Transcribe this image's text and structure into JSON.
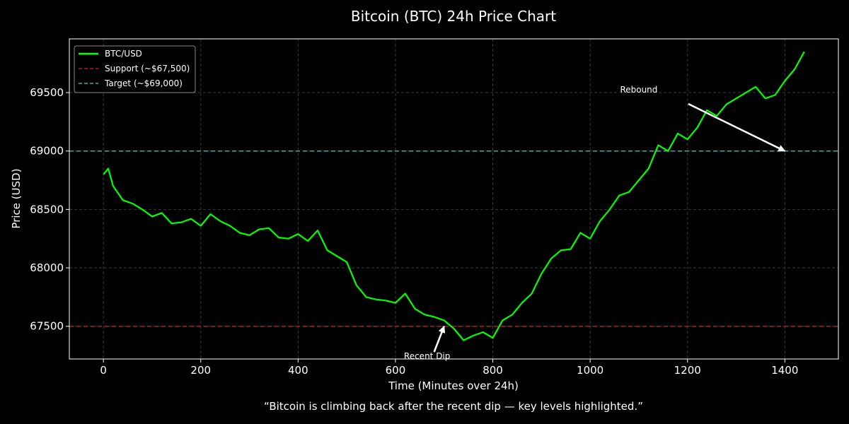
{
  "chart_data": {
    "type": "line",
    "title": "Bitcoin (BTC) 24h Price Chart",
    "xlabel": "Time (Minutes over 24h)",
    "ylabel": "Price (USD)",
    "caption": "“Bitcoin is climbing back after the recent dip — key levels highlighted.”",
    "xlim": [
      -70,
      1510
    ],
    "ylim": [
      67220,
      69960
    ],
    "x_ticks": [
      0,
      200,
      400,
      600,
      800,
      1000,
      1200,
      1400
    ],
    "y_ticks": [
      67500,
      68000,
      68500,
      69000,
      69500
    ],
    "grid": true,
    "legend_position": "top-left",
    "series": [
      {
        "name": "BTC/USD",
        "color": "#00ff00",
        "x": [
          0,
          10,
          20,
          40,
          60,
          80,
          100,
          120,
          140,
          160,
          180,
          200,
          220,
          240,
          260,
          280,
          300,
          320,
          340,
          360,
          380,
          400,
          420,
          440,
          460,
          480,
          500,
          520,
          540,
          560,
          580,
          600,
          620,
          640,
          660,
          680,
          700,
          720,
          740,
          760,
          780,
          800,
          820,
          840,
          860,
          880,
          900,
          920,
          940,
          960,
          980,
          1000,
          1020,
          1040,
          1060,
          1080,
          1100,
          1120,
          1140,
          1160,
          1180,
          1200,
          1220,
          1240,
          1260,
          1280,
          1300,
          1320,
          1340,
          1360,
          1380,
          1400,
          1420,
          1440
        ],
        "values": [
          68800,
          68850,
          68700,
          68580,
          68550,
          68500,
          68440,
          68470,
          68380,
          68390,
          68420,
          68360,
          68460,
          68400,
          68360,
          68300,
          68280,
          68330,
          68340,
          68260,
          68250,
          68290,
          68230,
          68320,
          68150,
          68100,
          68050,
          67850,
          67750,
          67730,
          67720,
          67700,
          67780,
          67650,
          67600,
          67580,
          67550,
          67480,
          67380,
          67420,
          67450,
          67400,
          67550,
          67600,
          67700,
          67780,
          67950,
          68080,
          68150,
          68160,
          68300,
          68250,
          68400,
          68500,
          68620,
          68650,
          68750,
          68850,
          69050,
          69000,
          69150,
          69100,
          69200,
          69350,
          69300,
          69400,
          69450,
          69500,
          69550,
          69450,
          69480,
          69600,
          69700,
          69850
        ]
      }
    ],
    "reference_lines": [
      {
        "name": "Support (~$67,500)",
        "value": 67500,
        "color": "#cc1111"
      },
      {
        "name": "Target (~$69,000)",
        "value": 69000,
        "color": "#2ab5b5"
      }
    ],
    "annotations": [
      {
        "text": "Recent Dip",
        "x": 700,
        "y": 67500,
        "text_x": 665,
        "text_y": 67220
      },
      {
        "text": "Rebound",
        "x": 1400,
        "y": 69000,
        "text_x": 1100,
        "text_y": 69500
      }
    ]
  }
}
